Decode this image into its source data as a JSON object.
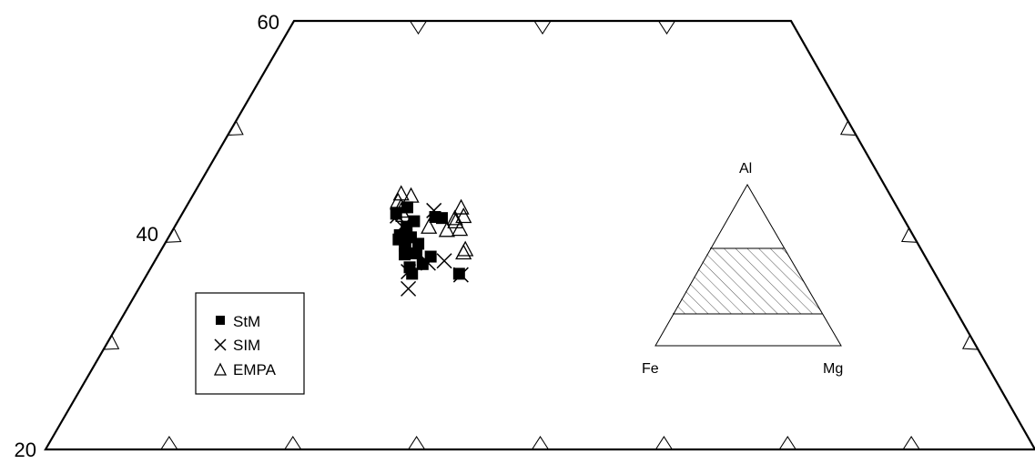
{
  "chart_data": {
    "type": "scatter",
    "title": "",
    "projection": "ternary-trapezoid",
    "al_range": [
      20,
      60
    ],
    "al_ticks": [
      20,
      40,
      60
    ],
    "al_tick_labels": [
      "20",
      "40",
      "60"
    ],
    "series": [
      {
        "name": "StM",
        "marker": "filled-square",
        "points": [
          {
            "al": 40.0,
            "fe": 41.4
          },
          {
            "al": 39.6,
            "fe": 41.7
          },
          {
            "al": 40.7,
            "fe": 40.5
          },
          {
            "al": 39.0,
            "fe": 41.5
          },
          {
            "al": 41.3,
            "fe": 39.6
          },
          {
            "al": 42.6,
            "fe": 39.5
          },
          {
            "al": 38.2,
            "fe": 41.9
          },
          {
            "al": 37.0,
            "fe": 42.1
          },
          {
            "al": 36.4,
            "fe": 42.2
          },
          {
            "al": 38.3,
            "fe": 40.9
          },
          {
            "al": 39.2,
            "fe": 40.3
          },
          {
            "al": 38.0,
            "fe": 39.9
          },
          {
            "al": 39.8,
            "fe": 40.6
          },
          {
            "al": 41.7,
            "fe": 37.7
          },
          {
            "al": 41.6,
            "fe": 37.2
          },
          {
            "al": 37.3,
            "fe": 40.9
          },
          {
            "al": 36.4,
            "fe": 38.4
          },
          {
            "al": 42.0,
            "fe": 40.7
          },
          {
            "al": 39.1,
            "fe": 41.4
          },
          {
            "al": 38.3,
            "fe": 41.4
          }
        ]
      },
      {
        "name": "SIM",
        "marker": "cross",
        "points": [
          {
            "al": 35.0,
            "fe": 43.2
          },
          {
            "al": 36.6,
            "fe": 42.4
          },
          {
            "al": 37.4,
            "fe": 40.4
          },
          {
            "al": 36.3,
            "fe": 38.3
          },
          {
            "al": 42.3,
            "fe": 37.5
          },
          {
            "al": 40.8,
            "fe": 40.8
          },
          {
            "al": 41.8,
            "fe": 40.7
          },
          {
            "al": 37.6,
            "fe": 39.0
          }
        ]
      },
      {
        "name": "EMPA",
        "marker": "open-triangle",
        "points": [
          {
            "al": 43.8,
            "fe": 39.4
          },
          {
            "al": 43.6,
            "fe": 38.7
          },
          {
            "al": 43.1,
            "fe": 40.0
          },
          {
            "al": 42.6,
            "fe": 40.0
          },
          {
            "al": 42.2,
            "fe": 40.2
          },
          {
            "al": 41.8,
            "fe": 40.2
          },
          {
            "al": 40.7,
            "fe": 38.7
          },
          {
            "al": 40.4,
            "fe": 37.4
          },
          {
            "al": 41.5,
            "fe": 36.2
          },
          {
            "al": 40.5,
            "fe": 36.3
          },
          {
            "al": 41.2,
            "fe": 36.3
          },
          {
            "al": 38.3,
            "fe": 37.1
          },
          {
            "al": 38.6,
            "fe": 36.8
          },
          {
            "al": 42.5,
            "fe": 35.2
          },
          {
            "al": 41.7,
            "fe": 35.4
          }
        ]
      }
    ],
    "legend": {
      "placement": "bottom-left",
      "entries": [
        "StM",
        "SIM",
        "EMPA"
      ]
    },
    "inset": {
      "labels": {
        "top": "Al",
        "left": "Fe",
        "right": "Mg"
      },
      "hatched_band_al": [
        20,
        60
      ]
    }
  }
}
